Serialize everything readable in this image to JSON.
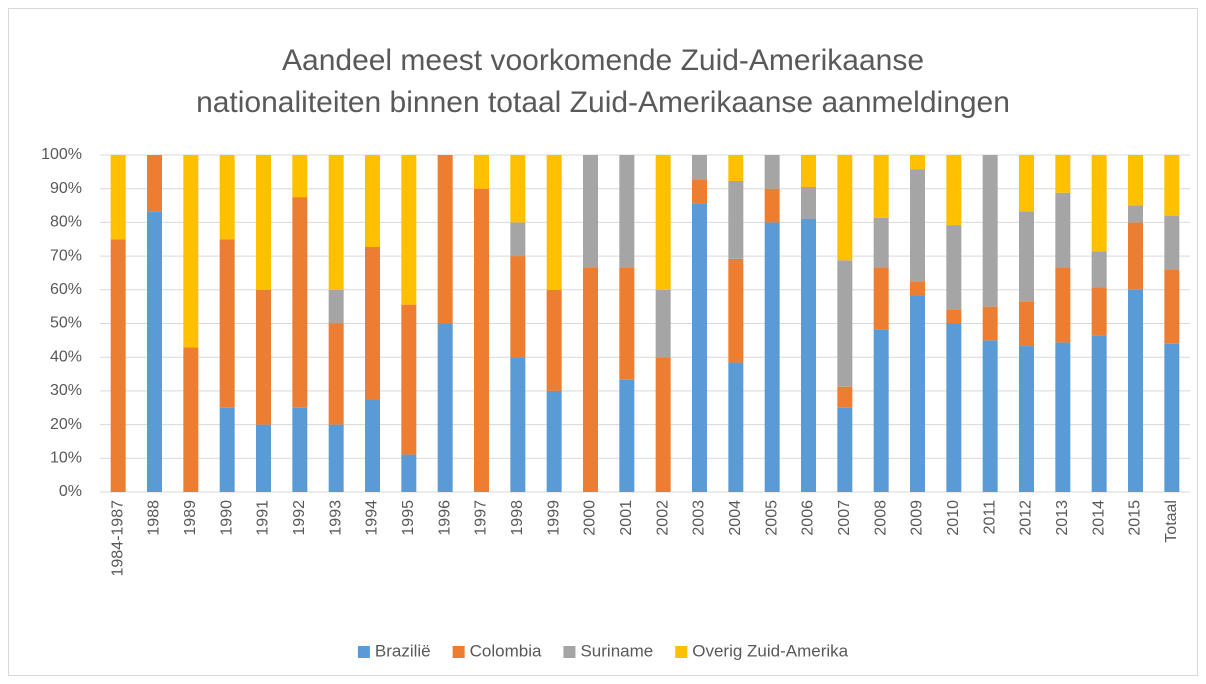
{
  "chart_data": {
    "type": "stacked_bar_100",
    "title": [
      "Aandeel meest voorkomende Zuid-Amerikaanse",
      "nationaliteiten binnen totaal Zuid-Amerikaanse aanmeldingen"
    ],
    "categories": [
      "1984-1987",
      "1988",
      "1989",
      "1990",
      "1991",
      "1992",
      "1993",
      "1994",
      "1995",
      "1996",
      "1997",
      "1998",
      "1999",
      "2000",
      "2001",
      "2002",
      "2003",
      "2004",
      "2005",
      "2006",
      "2007",
      "2008",
      "2009",
      "2010",
      "2011",
      "2012",
      "2013",
      "2014",
      "2015",
      "Totaal"
    ],
    "series": [
      {
        "name": "Brazilië",
        "color": "#5b9bd5",
        "values": [
          0,
          83.3,
          0,
          25,
          20,
          25,
          20,
          27.3,
          11.1,
          50,
          0,
          40,
          30,
          0,
          33.3,
          0,
          85.7,
          38.4,
          80,
          81,
          25,
          48.1,
          58.3,
          50,
          45,
          43.3,
          44.4,
          46.4,
          60,
          44
        ]
      },
      {
        "name": "Colombia",
        "color": "#ed7d31",
        "values": [
          75,
          16.7,
          42.9,
          50,
          40,
          62.5,
          30,
          45.4,
          44.5,
          50,
          90,
          30,
          30,
          66.7,
          33.4,
          40,
          7.1,
          30.8,
          10,
          0,
          6.25,
          18.5,
          4.2,
          4.2,
          10,
          13.3,
          22.2,
          14.3,
          20,
          22
        ]
      },
      {
        "name": "Suriname",
        "color": "#a5a5a5",
        "values": [
          0,
          0,
          0,
          0,
          0,
          0,
          10,
          0,
          0,
          0,
          0,
          10,
          0,
          33.3,
          33.3,
          20,
          7.2,
          23.1,
          10,
          9.5,
          37.5,
          14.8,
          33.3,
          25,
          45,
          26.7,
          22.2,
          10.7,
          5,
          16
        ]
      },
      {
        "name": "Overig Zuid-Amerika",
        "color": "#ffc000",
        "values": [
          25,
          0,
          57.1,
          25,
          40,
          12.5,
          40,
          27.3,
          44.4,
          0,
          10,
          20,
          40,
          0,
          0,
          40,
          0,
          7.7,
          0,
          9.5,
          31.25,
          18.6,
          4.2,
          20.8,
          0,
          16.7,
          11.2,
          28.6,
          15,
          18
        ]
      }
    ],
    "ylim": [
      0,
      100
    ],
    "yticks": [
      {
        "value": 0,
        "label": "0%"
      },
      {
        "value": 10,
        "label": "10%"
      },
      {
        "value": 20,
        "label": "20%"
      },
      {
        "value": 30,
        "label": "30%"
      },
      {
        "value": 40,
        "label": "40%"
      },
      {
        "value": 50,
        "label": "50%"
      },
      {
        "value": 60,
        "label": "60%"
      },
      {
        "value": 70,
        "label": "70%"
      },
      {
        "value": 80,
        "label": "80%"
      },
      {
        "value": 90,
        "label": "90%"
      },
      {
        "value": 100,
        "label": "100%"
      }
    ],
    "grid": true,
    "legend": "bottom"
  }
}
